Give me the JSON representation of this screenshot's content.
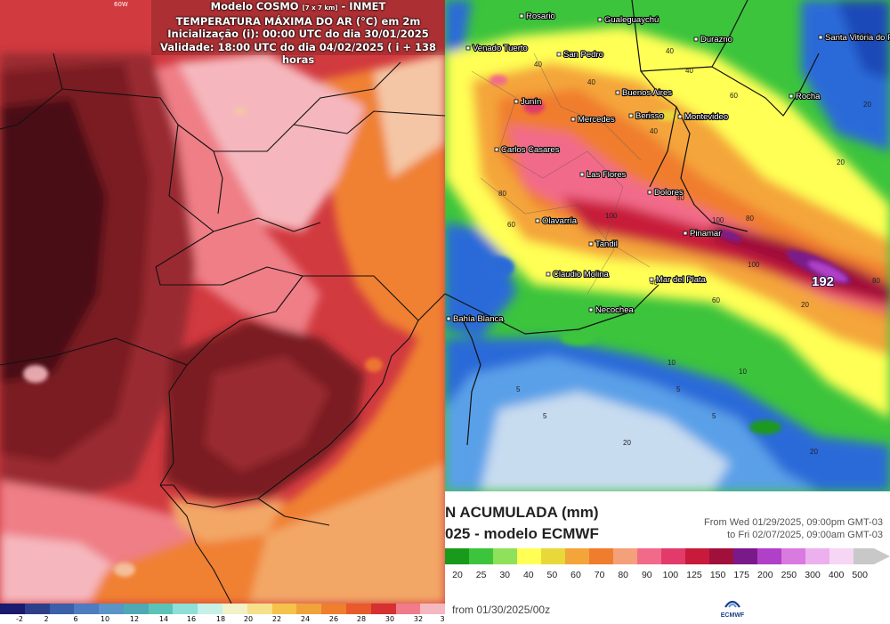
{
  "left_panel": {
    "title_prefix": "Modelo COSMO",
    "title_resolution": "[7 x 7 km]",
    "title_suffix": "- INMET",
    "variable": "TEMPERATURA MÁXIMA DO AR (°C) em 2m",
    "init": "Inicialização (i): 00:00 UTC do dia 30/01/2025",
    "valid": "Validade: 18:00 UTC do dia 04/02/2025 ( i + 138 horas",
    "lon_label": "60W",
    "legend": {
      "colors": [
        "#1a1a6e",
        "#2e3f8a",
        "#3b5fa8",
        "#4f7bbf",
        "#5b94c7",
        "#4fa9b5",
        "#5cc3b8",
        "#8ddfd7",
        "#c6f0e8",
        "#f3f1c7",
        "#f7e08a",
        "#f5c24a",
        "#f2a23a",
        "#ef7f2f",
        "#e85a2a",
        "#d63030",
        "#f07b8a",
        "#f5b8c0"
      ],
      "ticks": [
        "-2",
        "2",
        "6",
        "10",
        "12",
        "14",
        "16",
        "18",
        "20",
        "22",
        "24",
        "26",
        "28",
        "30",
        "32",
        "3"
      ]
    },
    "region_colors": {
      "darkest": "#4a0a12",
      "dark": "#7a1a22",
      "deep_red": "#9a2a30",
      "red": "#d13a3f",
      "pink": "#ef7e86",
      "light_pink": "#f5b7bd",
      "orange": "#f08030",
      "light_orange": "#f3a766",
      "salmon": "#f5c6a5"
    }
  },
  "right_panel": {
    "title_line1": "N ACUMULADA (mm)",
    "title_line2": "025 - modelo ECMWF",
    "period_from": "From Wed 01/29/2025, 09:00pm GMT-03",
    "period_to": "to Fri 02/07/2025, 09:00am GMT-03",
    "run": "from 01/30/2025/00z",
    "logo_text": "ECMWF",
    "legend": {
      "colors": [
        "#1a9a1a",
        "#3cc43c",
        "#8fe05a",
        "#ffff55",
        "#e8d83a",
        "#f4a53a",
        "#f07d2e",
        "#f4a07a",
        "#f26a8a",
        "#e23a6a",
        "#c81a3a",
        "#a0103a",
        "#7a1a8a",
        "#b040c8",
        "#d87ae0",
        "#ecb0ee",
        "#f5d6f5",
        "#c8c8c8"
      ],
      "ticks": [
        "20",
        "25",
        "30",
        "40",
        "50",
        "60",
        "70",
        "80",
        "90",
        "100",
        "125",
        "150",
        "175",
        "200",
        "250",
        "300",
        "400",
        "500"
      ]
    },
    "cities": [
      {
        "name": "Rosario"
      },
      {
        "name": "Gualeguaychú"
      },
      {
        "name": "Durazno"
      },
      {
        "name": "Santa Vitória do Palmar"
      },
      {
        "name": "Venado Tuerto"
      },
      {
        "name": "San Pedro"
      },
      {
        "name": "Buenos Aires"
      },
      {
        "name": "Montevideo"
      },
      {
        "name": "Rocha"
      },
      {
        "name": "Junín"
      },
      {
        "name": "Mercedes"
      },
      {
        "name": "Berisso"
      },
      {
        "name": "Carlos Casares"
      },
      {
        "name": "Las Flores"
      },
      {
        "name": "Dolores"
      },
      {
        "name": "Olavarría"
      },
      {
        "name": "Tandil"
      },
      {
        "name": "Pinamar"
      },
      {
        "name": "Claudio Molina"
      },
      {
        "name": "Mar del Plata"
      },
      {
        "name": "Necochea"
      },
      {
        "name": "Bahía Blanca"
      }
    ],
    "peak_value": "192",
    "contour_labels": [
      "40",
      "40",
      "40",
      "40",
      "60",
      "60",
      "80",
      "80",
      "80",
      "100",
      "100",
      "100",
      "40",
      "20",
      "20",
      "20",
      "10",
      "10",
      "5",
      "5",
      "5",
      "5",
      "20",
      "20",
      "40",
      "80",
      "60"
    ]
  }
}
